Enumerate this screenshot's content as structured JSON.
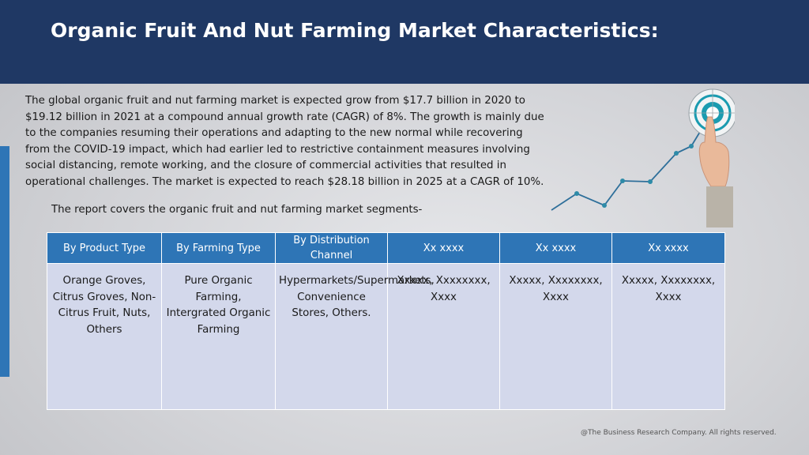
{
  "title": "Organic Fruit And Nut Farming Market Characteristics:",
  "intro": "The global organic fruit and nut farming market is expected grow from $17.7 billion in 2020 to $19.12 billion in 2021 at a compound annual growth rate (CAGR) of 8%. The growth is mainly due to the companies resuming their operations and adapting to the new normal while recovering from the COVID-19 impact, which had earlier led to restrictive containment measures involving social distancing, remote working, and the closure of commercial activities that resulted in operational challenges. The market is expected to reach $28.18 billion in 2025 at a CAGR of 10%.",
  "segments_note": "The report covers the organic fruit and nut farming market segments-",
  "table": {
    "headers": [
      "By Product Type",
      "By Farming Type",
      "By Distribution Channel",
      "Xx xxxx",
      "Xx xxxx",
      "Xx xxxx"
    ],
    "cells": [
      "Orange Groves, Citrus Groves, Non-Citrus Fruit, Nuts, Others",
      "Pure Organic Farming, Intergrated Organic Farming",
      "Hypermarkets/Supermarkets, Convenience Stores, Others.",
      "Xxxxx, Xxxxxxxx, Xxxx",
      "Xxxxx, Xxxxxxxx, Xxxx",
      "Xxxxx, Xxxxxxxx, Xxxx"
    ]
  },
  "footer": "@The Business Research Company. All rights reserved.",
  "colors": {
    "header_bg": "#1f3864",
    "accent": "#2e75b6",
    "cell_bg": "#d3d8eb",
    "target_teal": "#1a9bb0"
  },
  "graphic": {
    "icons": [
      "growth-line-icon",
      "target-icon",
      "pointing-hand-icon"
    ]
  }
}
